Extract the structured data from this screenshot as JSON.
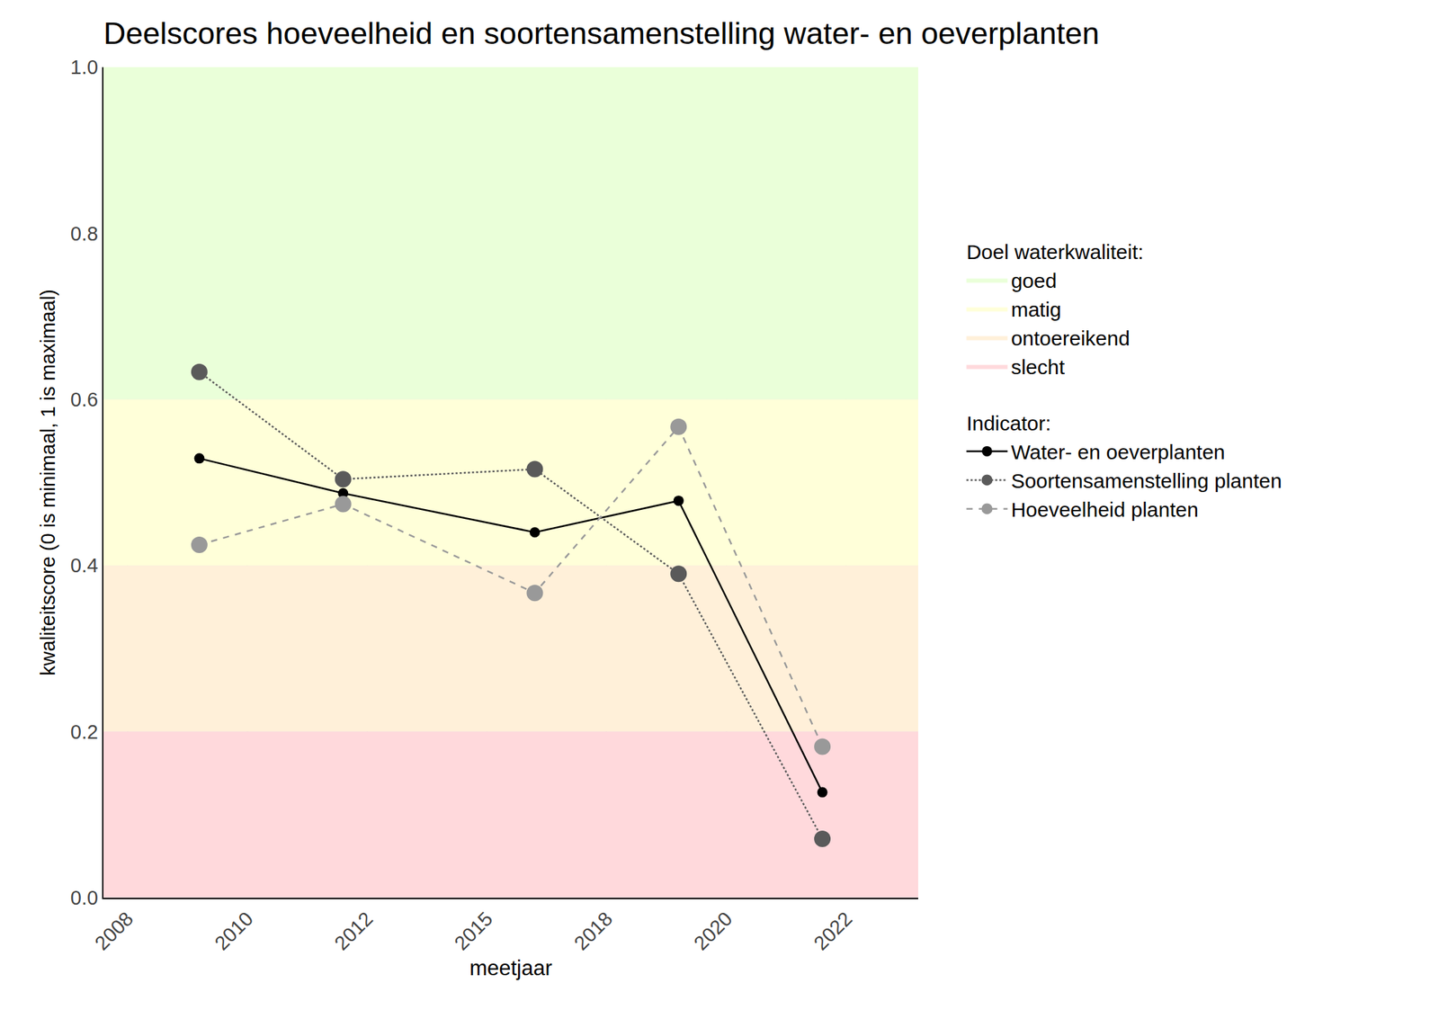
{
  "chart_data": {
    "type": "line",
    "title": "Deelscores hoeveelheid en soortensamenstelling water- en oeverplanten",
    "x_label": "meetjaar",
    "y_label": "kwaliteitscore (0 is minimaal, 1 is maximaal)",
    "x": [
      2009,
      2012,
      2016,
      2019,
      2022
    ],
    "xlim": [
      2007,
      2024
    ],
    "xticks": [
      {
        "value": 2007.5,
        "label": "2008"
      },
      2010,
      {
        "value": 2012.5,
        "label": "2012"
      },
      2015,
      {
        "value": 2017.5,
        "label": "2018"
      },
      2020,
      {
        "value": 2022.5,
        "label": "2022"
      }
    ],
    "ylim": [
      0,
      1
    ],
    "yticks": [
      {
        "value": 0,
        "label": "0.0"
      },
      {
        "value": 0.2,
        "label": "0.2"
      },
      {
        "value": 0.4,
        "label": "0.4"
      },
      {
        "value": 0.6,
        "label": "0.6"
      },
      {
        "value": 0.8,
        "label": "0.8"
      },
      {
        "value": 1,
        "label": "1.0"
      }
    ],
    "grid": true,
    "legend": "right",
    "bands_title": "Doel waterkwaliteit:",
    "bands": [
      {
        "name": "goed",
        "from": 0.6,
        "to": 1.0,
        "color": "#eaffd9"
      },
      {
        "name": "matig",
        "from": 0.4,
        "to": 0.6,
        "color": "#ffffd9"
      },
      {
        "name": "ontoereikend",
        "from": 0.2,
        "to": 0.4,
        "color": "#fff0d9"
      },
      {
        "name": "slecht",
        "from": 0.0,
        "to": 0.2,
        "color": "#ffd9dc"
      }
    ],
    "series_title": "Indicator:",
    "series": [
      {
        "name": "Water- en oeverplanten",
        "color": "#000000",
        "line_style": "solid",
        "marker": "circle",
        "values": [
          0.529,
          0.487,
          0.44,
          0.478,
          0.127
        ]
      },
      {
        "name": "Soortensamenstelling planten",
        "color": "#5a5a5a",
        "line_style": "dotted",
        "marker": "circle",
        "values": [
          0.633,
          0.504,
          0.516,
          0.39,
          0.071
        ]
      },
      {
        "name": "Hoeveelheid planten",
        "color": "#999999",
        "line_style": "dashed",
        "marker": "circle",
        "values": [
          0.425,
          0.474,
          0.367,
          0.567,
          0.182
        ]
      }
    ]
  }
}
